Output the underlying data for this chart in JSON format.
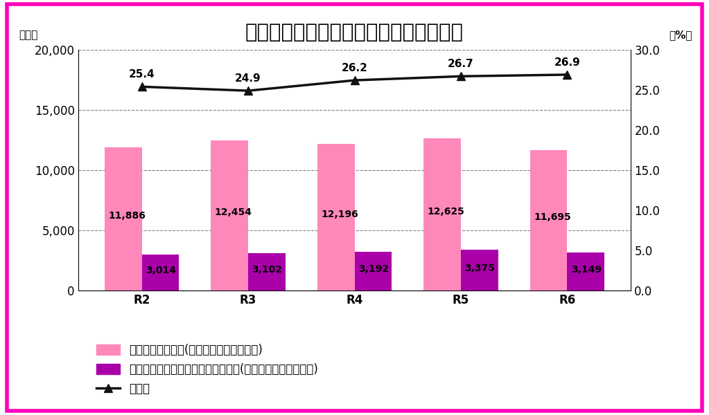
{
  "title": "高齢運転者による交通人身事故発生状況",
  "categories": [
    "R2",
    "R3",
    "R4",
    "R5",
    "R6"
  ],
  "bar_pink": [
    11886,
    12454,
    12196,
    12625,
    11695
  ],
  "bar_purple": [
    3014,
    3102,
    3192,
    3375,
    3149
  ],
  "line_values": [
    25.4,
    24.9,
    26.2,
    26.7,
    26.9
  ],
  "bar_pink_labels": [
    "11,886",
    "12,454",
    "12,196",
    "12,625",
    "11,695"
  ],
  "bar_purple_labels": [
    "3,014",
    "3,102",
    "3,192",
    "3,375",
    "3,149"
  ],
  "line_labels": [
    "25.4",
    "24.9",
    "26.2",
    "26.7",
    "26.9"
  ],
  "color_pink": "#FF88BB",
  "color_purple": "#AA00AA",
  "color_line": "#111111",
  "ylim_left": [
    0,
    20000
  ],
  "ylim_right": [
    0.0,
    30.0
  ],
  "yticks_left": [
    0,
    5000,
    10000,
    15000,
    20000
  ],
  "yticks_right": [
    0.0,
    5.0,
    10.0,
    15.0,
    20.0,
    25.0,
    30.0
  ],
  "ylabel_left": "（件）",
  "ylabel_right": "（%）",
  "legend1": "交通人身事故件数(第一当事者が原付以上)",
  "legend2": "高齢運転者による交通人身事故件数(第一当事者が原付以上)",
  "legend3": "構成率",
  "background_color": "#FFFFFF",
  "border_color": "#FF00BB",
  "bar_width": 0.35,
  "title_fontsize": 21,
  "label_fontsize": 11,
  "tick_fontsize": 12,
  "legend_fontsize": 12,
  "bar_label_fontsize": 10,
  "line_label_fontsize": 11
}
